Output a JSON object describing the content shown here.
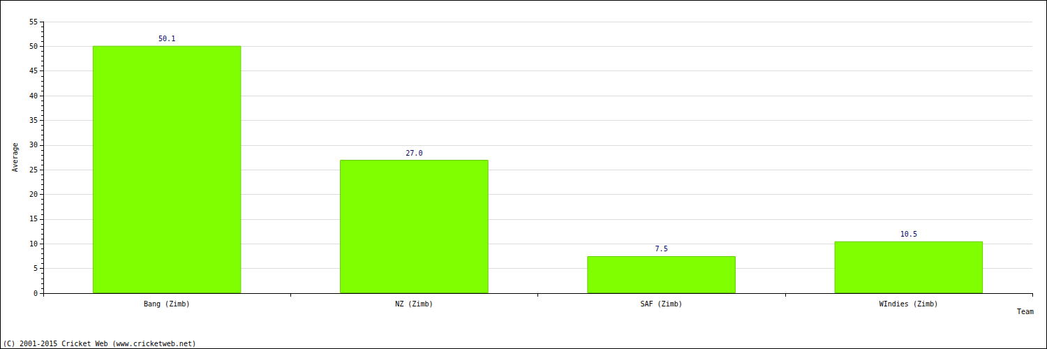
{
  "chart_data": {
    "type": "bar",
    "categories": [
      "Bang (Zimb)",
      "NZ (Zimb)",
      "SAF (Zimb)",
      "WIndies (Zimb)"
    ],
    "values": [
      50.1,
      27.0,
      7.5,
      10.5
    ],
    "value_labels": [
      "50.1",
      "27.0",
      "7.5",
      "10.5"
    ],
    "color": "#80ff00",
    "x_label": "Team",
    "y_label": "Average",
    "ylim": [
      0,
      55
    ],
    "yticks": [
      0,
      5,
      10,
      15,
      20,
      25,
      30,
      35,
      40,
      45,
      50,
      55
    ],
    "grid": true,
    "data_labels": true,
    "annotations": [
      "(C) 2001-2015 Cricket Web (www.cricketweb.net)"
    ]
  }
}
